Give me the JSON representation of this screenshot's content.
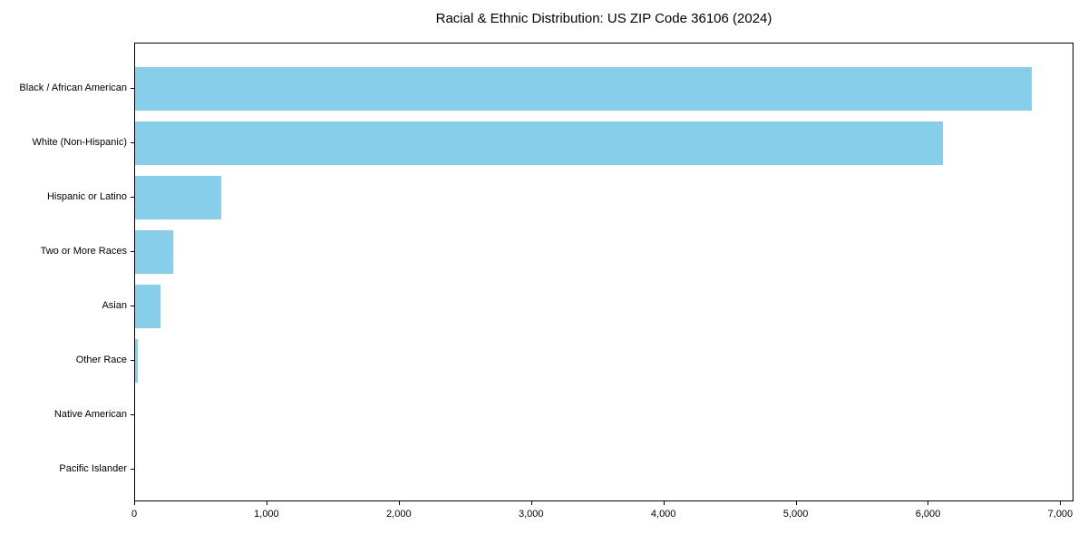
{
  "colors": {
    "background": "#ffffff",
    "text": "#000000",
    "spine": "#000000",
    "bar": "#87CEEB"
  },
  "chart_data": {
    "type": "bar",
    "orientation": "horizontal",
    "title": "Racial & Ethnic Distribution: US ZIP Code 36106 (2024)",
    "xlabel": "",
    "ylabel": "",
    "categories": [
      "Black / African American",
      "White (Non-Hispanic)",
      "Hispanic or Latino",
      "Two or More Races",
      "Asian",
      "Other Race",
      "Native American",
      "Pacific Islander"
    ],
    "values": [
      6790,
      6120,
      650,
      290,
      190,
      20,
      0,
      0
    ],
    "bar_color": "#87CEEB",
    "xlim": [
      0,
      7100
    ],
    "x_tick_values": [
      0,
      1000,
      2000,
      3000,
      4000,
      5000,
      6000,
      7000
    ],
    "x_tick_labels": [
      "0",
      "1,000",
      "2,000",
      "3,000",
      "4,000",
      "5,000",
      "6,000",
      "7,000"
    ],
    "grid": false,
    "legend": null
  }
}
